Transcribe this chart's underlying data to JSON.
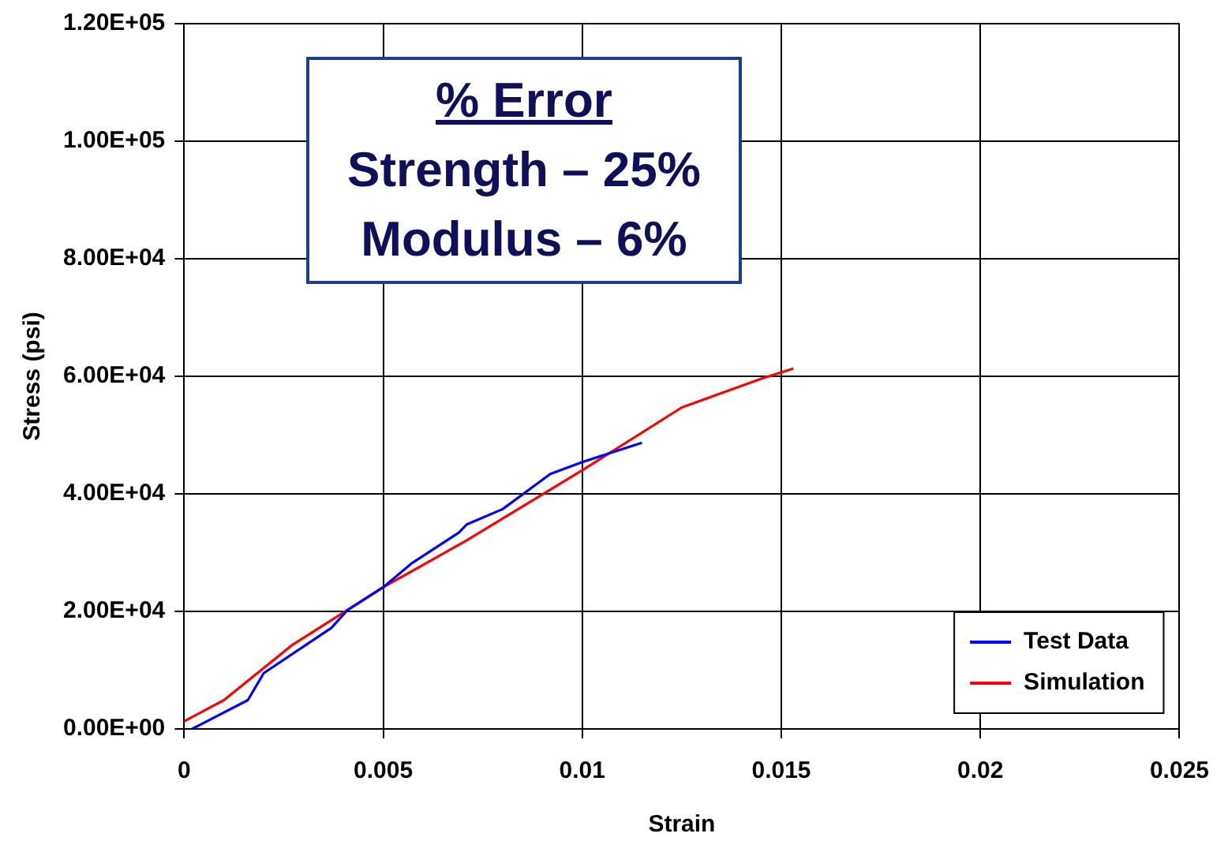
{
  "chart_data": {
    "type": "line",
    "xlabel": "Strain",
    "ylabel": "Stress (psi)",
    "xlim": [
      0,
      0.025
    ],
    "xticks": [
      0,
      0.005,
      0.01,
      0.015,
      0.02,
      0.025
    ],
    "ylim": [
      0,
      120000
    ],
    "yticks": [
      {
        "value": 0,
        "label": "0.00E+00"
      },
      {
        "value": 20000,
        "label": "2.00E+04"
      },
      {
        "value": 40000,
        "label": "4.00E+04"
      },
      {
        "value": 60000,
        "label": "6.00E+04"
      },
      {
        "value": 80000,
        "label": "8.00E+04"
      },
      {
        "value": 100000,
        "label": "1.00E+05"
      },
      {
        "value": 120000,
        "label": "1.20E+05"
      }
    ],
    "grid": true,
    "legend": "bottom right",
    "marker": "none",
    "line_style": "solid",
    "annotations": [
      "% Error",
      "Strength – 25%",
      "Modulus – 6%"
    ],
    "series": [
      {
        "name": "Test Data",
        "color": "#0000ff",
        "x": [
          0.0002,
          0.0016,
          0.002,
          0.0037,
          0.0041,
          0.005,
          0.0057,
          0.0069,
          0.0071,
          0.008,
          0.0092,
          0.01,
          0.0115
        ],
        "values": [
          0,
          4900,
          9500,
          17200,
          20200,
          24100,
          28100,
          33400,
          34800,
          37400,
          43400,
          45400,
          48700
        ]
      },
      {
        "name": "Simulation",
        "color": "#ff0000",
        "x": [
          0,
          0.001,
          0.0027,
          0.005,
          0.0071,
          0.01,
          0.0125,
          0.0145,
          0.0153
        ],
        "values": [
          1300,
          4900,
          14200,
          24100,
          32100,
          44000,
          54700,
          59600,
          61300
        ]
      }
    ]
  }
}
